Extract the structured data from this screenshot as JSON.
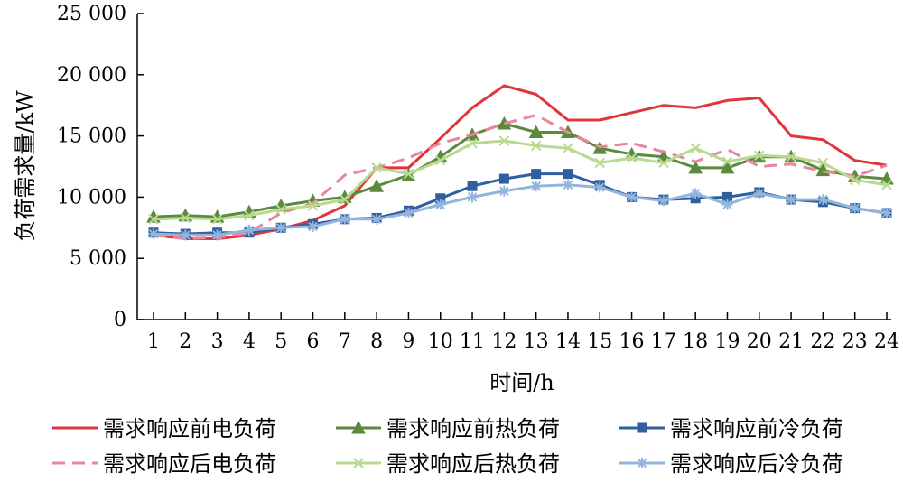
{
  "chart_data": {
    "type": "line",
    "xlabel": "时间/h",
    "ylabel": "负荷需求量/kW",
    "ylim": [
      0,
      25000
    ],
    "yticks": [
      0,
      5000,
      10000,
      15000,
      20000,
      25000
    ],
    "ytick_labels": [
      "0",
      "5 000",
      "10 000",
      "15 000",
      "20 000",
      "25 000"
    ],
    "categories": [
      "1",
      "2",
      "3",
      "4",
      "5",
      "6",
      "7",
      "8",
      "9",
      "10",
      "11",
      "12",
      "13",
      "14",
      "15",
      "16",
      "17",
      "18",
      "19",
      "20",
      "21",
      "22",
      "23",
      "24"
    ],
    "legend_position": "bottom",
    "grid": false,
    "series": [
      {
        "name": "需求响应前电负荷",
        "color": "#e0353b",
        "dash": "solid",
        "marker": "none",
        "values": [
          6900,
          6600,
          6600,
          6900,
          7400,
          8100,
          9300,
          12400,
          12400,
          14800,
          17300,
          19100,
          18400,
          16300,
          16300,
          16900,
          17500,
          17300,
          17900,
          18100,
          15000,
          14700,
          13000,
          12600
        ]
      },
      {
        "name": "需求响应前热负荷",
        "color": "#5a8a3c",
        "dash": "solid",
        "marker": "triangle",
        "values": [
          8400,
          8500,
          8400,
          8800,
          9300,
          9700,
          10000,
          10900,
          11800,
          13300,
          15100,
          16000,
          15300,
          15300,
          14000,
          13500,
          13300,
          12400,
          12400,
          13300,
          13300,
          12200,
          11700,
          11500
        ]
      },
      {
        "name": "需求响应前冷负荷",
        "color": "#2f5f9e",
        "dash": "solid",
        "marker": "square",
        "values": [
          7100,
          7000,
          7100,
          7100,
          7500,
          7800,
          8200,
          8300,
          8900,
          9900,
          10900,
          11500,
          11900,
          11900,
          11000,
          10000,
          9800,
          9900,
          10000,
          10400,
          9800,
          9600,
          9100,
          8700
        ]
      },
      {
        "name": "需求响应后电负荷",
        "color": "#e8869b",
        "dash": "dashed",
        "marker": "none",
        "values": [
          6900,
          6600,
          6700,
          7100,
          8700,
          9500,
          11800,
          12400,
          13200,
          14400,
          15100,
          16000,
          16700,
          15300,
          14100,
          14400,
          13700,
          12900,
          13900,
          12500,
          12700,
          12100,
          11700,
          12600
        ]
      },
      {
        "name": "需求响应后热负荷",
        "color": "#b8d98f",
        "dash": "solid",
        "marker": "x",
        "values": [
          8200,
          8300,
          8200,
          8500,
          9000,
          9300,
          9800,
          12400,
          11900,
          13000,
          14400,
          14600,
          14200,
          14000,
          12800,
          13200,
          12800,
          14000,
          12900,
          13400,
          13300,
          12800,
          11400,
          11000
        ]
      },
      {
        "name": "需求响应后冷负荷",
        "color": "#92b4dd",
        "dash": "solid",
        "marker": "asterisk",
        "values": [
          7000,
          6900,
          6900,
          7300,
          7500,
          7600,
          8200,
          8200,
          8700,
          9400,
          10000,
          10500,
          10900,
          11000,
          10800,
          10000,
          9700,
          10300,
          9400,
          10300,
          9800,
          9800,
          9100,
          8700
        ]
      }
    ]
  }
}
